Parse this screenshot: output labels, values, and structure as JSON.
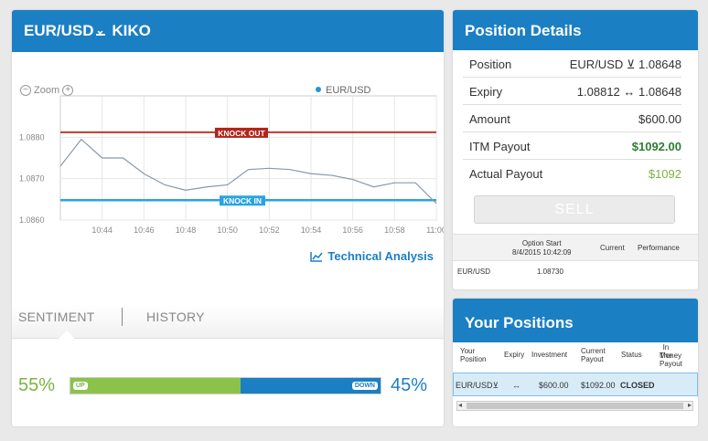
{
  "main": {
    "pair": "EUR/USD",
    "direction_icon": "arrow-down-underline-icon",
    "product": "KIKO"
  },
  "chart": {
    "zoom_label": "Zoom",
    "legend_label": "EUR/USD",
    "technical_analysis": "Technical Analysis"
  },
  "chart_data": {
    "type": "line",
    "x": [
      "10:42",
      "10:43",
      "10:44",
      "10:45",
      "10:46",
      "10:47",
      "10:48",
      "10:49",
      "10:50",
      "10:51",
      "10:52",
      "10:53",
      "10:54",
      "10:55",
      "10:56",
      "10:57",
      "10:58",
      "10:59",
      "11:00"
    ],
    "series": [
      {
        "name": "EUR/USD",
        "values": [
          1.0873,
          1.08795,
          1.0875,
          1.0875,
          1.08712,
          1.08685,
          1.08672,
          1.0868,
          1.08685,
          1.08722,
          1.08725,
          1.08722,
          1.08712,
          1.08708,
          1.08698,
          1.0868,
          1.0869,
          1.0869,
          1.0864
        ]
      }
    ],
    "x_ticks": [
      "10:44",
      "10:46",
      "10:48",
      "10:50",
      "10:52",
      "10:54",
      "10:56",
      "10:58",
      "11:00"
    ],
    "y_ticks": [
      1.086,
      1.087,
      1.088
    ],
    "ylim": [
      1.086,
      1.089
    ],
    "knock_out": 1.08812,
    "knock_in": 1.08648,
    "knock_out_label": "KNOCK OUT",
    "knock_in_label": "KNOCK IN",
    "knock_out_color": "#c0392b",
    "knock_in_color": "#29a3e6",
    "line_color": "#8a98a8",
    "grid": true
  },
  "tabs": {
    "sentiment": "SENTIMENT",
    "history": "HISTORY"
  },
  "sentiment": {
    "up_pct": "55%",
    "down_pct": "45%",
    "up_label": "UP",
    "down_label": "DOWN",
    "up_fraction": 0.55
  },
  "details": {
    "title": "Position Details",
    "rows": [
      {
        "label": "Position",
        "value": "EUR/USD ⊻ 1.08648"
      },
      {
        "label": "Expiry",
        "value": "1.08812 ↔ 1.08648"
      },
      {
        "label": "Amount",
        "value": "$600.00"
      },
      {
        "label": "ITM Payout",
        "value": "$1092.00"
      },
      {
        "label": "Actual Payout",
        "value": "$1092"
      }
    ],
    "sell": "SELL",
    "table": {
      "option_start_label": "Option Start",
      "option_start_time": "8/4/2015 10:42:09",
      "current_label": "Current",
      "performance_label": "Performance",
      "asset": "EUR/USD",
      "start_value": "1.08730"
    }
  },
  "positions": {
    "title": "Your Positions",
    "columns": {
      "your_position": [
        "Your",
        "Position"
      ],
      "expiry": "Expiry",
      "investment": "Investment",
      "current_payout": [
        "Current",
        "Payout"
      ],
      "status": "Status",
      "itm_payout": [
        "In The",
        "Money",
        "Payout"
      ]
    },
    "row": {
      "position": "EUR/USD⊻",
      "expiry": "↔",
      "investment": "$600.00",
      "current_payout": "$1092.00",
      "status": "CLOSED"
    }
  },
  "colors": {
    "brand": "#1b7fc4",
    "up": "#8bc34a",
    "down": "#1b7fc4"
  }
}
